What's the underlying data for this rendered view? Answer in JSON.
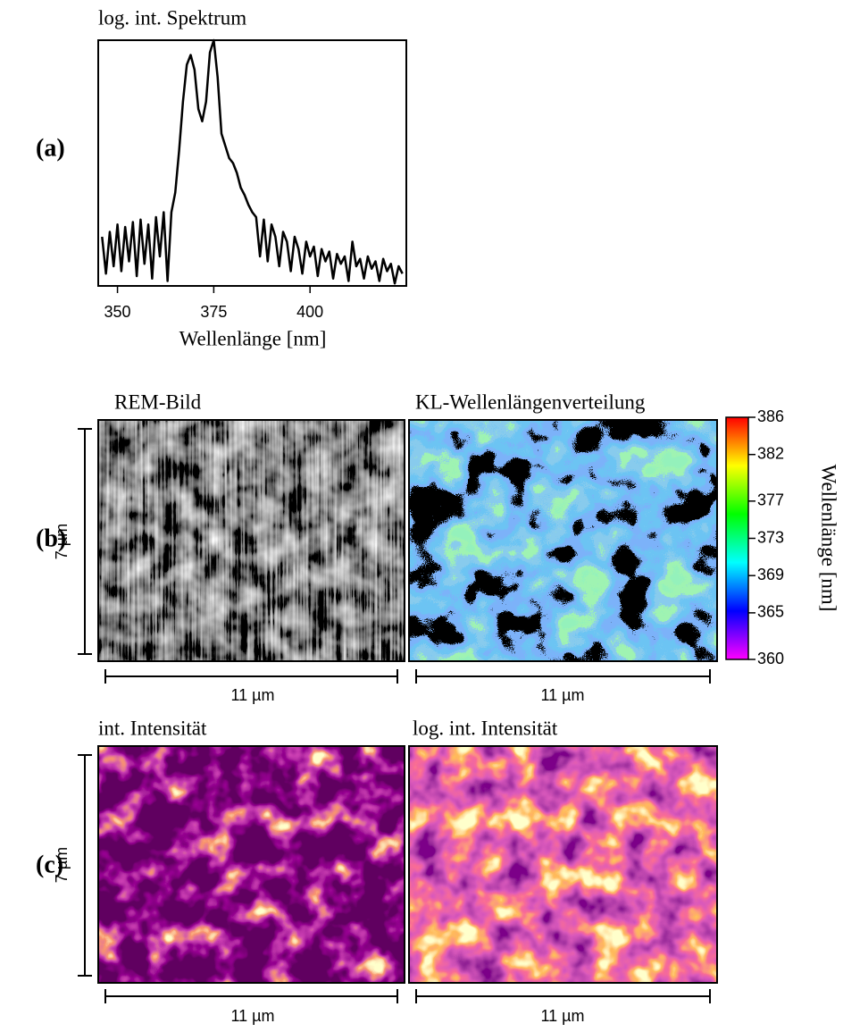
{
  "panel_labels": [
    "(a)",
    "(b)",
    "(c)"
  ],
  "chart_data": [
    {
      "type": "line",
      "title": "log. int. Spektrum",
      "x_label": "Wellenlänge [nm]",
      "x": [
        346,
        347,
        348,
        349,
        350,
        351,
        352,
        353,
        354,
        355,
        356,
        357,
        358,
        359,
        360,
        361,
        362,
        363,
        364,
        365,
        366,
        367,
        368,
        369,
        370,
        371,
        372,
        373,
        374,
        375,
        376,
        377,
        378,
        379,
        380,
        381,
        382,
        383,
        384,
        385,
        386,
        387,
        388,
        389,
        390,
        391,
        392,
        393,
        394,
        395,
        396,
        397,
        398,
        399,
        400,
        401,
        402,
        403,
        404,
        405,
        406,
        407,
        408,
        409,
        410,
        411,
        412,
        413,
        414,
        415,
        416,
        417,
        418,
        419,
        420,
        421,
        422,
        423,
        424
      ],
      "values": [
        20,
        5,
        22,
        8,
        25,
        6,
        24,
        10,
        26,
        4,
        27,
        9,
        25,
        3,
        28,
        12,
        30,
        2,
        30,
        38,
        55,
        75,
        90,
        94,
        88,
        72,
        67,
        75,
        95,
        100,
        85,
        62,
        57,
        52,
        50,
        46,
        40,
        37,
        33,
        30,
        28,
        12,
        27,
        10,
        25,
        20,
        8,
        22,
        18,
        6,
        20,
        15,
        5,
        18,
        12,
        16,
        4,
        15,
        10,
        14,
        3,
        13,
        9,
        12,
        2,
        18,
        8,
        11,
        3,
        12,
        7,
        10,
        2,
        11,
        6,
        9,
        1,
        8,
        5
      ],
      "color": "#000000",
      "xlim": [
        345,
        425
      ],
      "xticks": [
        350,
        375,
        400
      ],
      "ylim": [
        0,
        100
      ]
    },
    {
      "type": "colorbar",
      "label": "Wellenlänge [nm]",
      "ylim": [
        360,
        386
      ],
      "yticks": [
        360,
        365,
        369,
        373,
        377,
        382,
        386
      ],
      "colors": [
        "#ff00ff",
        "#0000ff",
        "#00ffff",
        "#00ff00",
        "#ffff00",
        "#ff0000"
      ]
    }
  ],
  "images": [
    {
      "title": "REM-Bild",
      "x_scale": "11 µm",
      "y_scale": "7 µm"
    },
    {
      "title": "KL-Wellenlängenverteilung",
      "x_scale": "11 µm"
    },
    {
      "title": "int. Intensität",
      "x_scale": "11 µm",
      "y_scale": "7 µm"
    },
    {
      "title": "log. int. Intensität",
      "x_scale": "11 µm"
    }
  ]
}
